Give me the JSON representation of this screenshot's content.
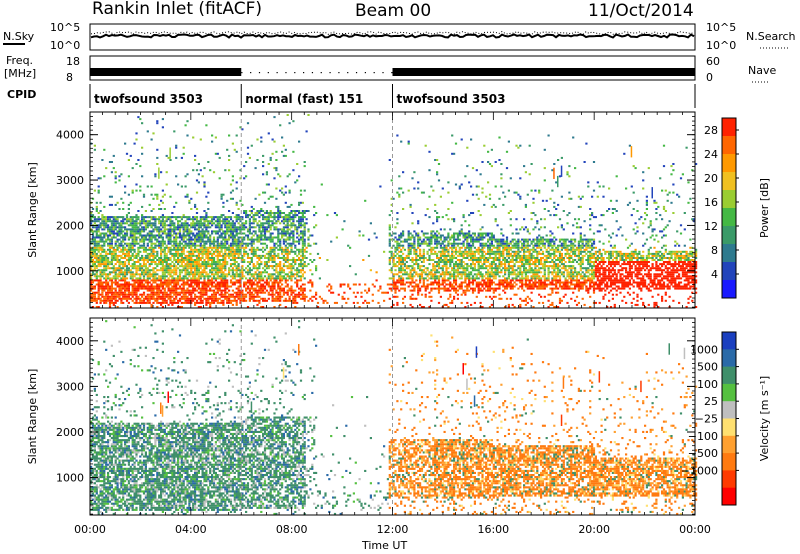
{
  "header": {
    "site": "Rankin Inlet (fitACF)",
    "beam": "Beam 00",
    "date": "11/Oct/2014"
  },
  "strips": {
    "nsky_label": "N.Sky",
    "nsearch_label": "N.Search",
    "noise_ticks": [
      "10^5",
      "10^0"
    ],
    "freq_label_1": "Freq.",
    "freq_label_2": "[MHz]",
    "freq_ticks": [
      "18",
      "8"
    ],
    "nave_label": "Nave",
    "nave_ticks": [
      "60",
      "0"
    ],
    "cpid_label": "CPID",
    "modes": [
      {
        "name": "twofsound 3503",
        "start": 0.0,
        "end": 6.0
      },
      {
        "name": "normal (fast) 151",
        "start": 6.0,
        "end": 12.0
      },
      {
        "name": "twofsound 3503",
        "start": 12.0,
        "end": 24.0
      }
    ]
  },
  "chart_data": [
    {
      "type": "heatmap",
      "title": "",
      "xlabel": "Time UT",
      "ylabel": "Slant Range [km]",
      "x_ticks": [
        "00:00",
        "04:00",
        "08:00",
        "12:00",
        "16:00",
        "20:00",
        "00:00"
      ],
      "xlim": [
        0,
        24
      ],
      "y_ticks": [
        "1000",
        "2000",
        "3000",
        "4000"
      ],
      "ylim": [
        180,
        4500
      ],
      "colorbar": {
        "label": "Power [dB]",
        "ticks": [
          "4",
          "8",
          "12",
          "16",
          "20",
          "24",
          "28"
        ],
        "range": [
          0,
          30
        ],
        "colors": [
          "#1a1aff",
          "#2244bb",
          "#2e7a8e",
          "#3a9a68",
          "#44b844",
          "#9acd32",
          "#f0c020",
          "#ff9900",
          "#ff6600",
          "#ff2200"
        ]
      }
    },
    {
      "type": "heatmap",
      "title": "",
      "xlabel": "Time UT",
      "ylabel": "Slant Range [km]",
      "x_ticks": [
        "00:00",
        "04:00",
        "08:00",
        "12:00",
        "16:00",
        "20:00",
        "00:00"
      ],
      "xlim": [
        0,
        24
      ],
      "y_ticks": [
        "1000",
        "2000",
        "3000",
        "4000"
      ],
      "ylim": [
        180,
        4500
      ],
      "colorbar": {
        "label": "Velocity [m s⁻¹]",
        "ticks": [
          "1000",
          "500",
          "100",
          "25",
          "−25",
          "−100",
          "−500",
          "−1000"
        ],
        "colors": [
          "#1a3fbf",
          "#2a6aa8",
          "#3f8f6a",
          "#55c040",
          "#bfbfbf",
          "#ffe070",
          "#ffa030",
          "#ff7a10",
          "#ff3a00",
          "#ff0000"
        ]
      }
    }
  ]
}
